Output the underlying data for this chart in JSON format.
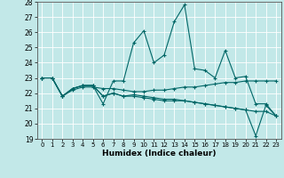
{
  "title": "",
  "xlabel": "Humidex (Indice chaleur)",
  "xlim": [
    -0.5,
    23.5
  ],
  "ylim": [
    19,
    28
  ],
  "yticks": [
    19,
    20,
    21,
    22,
    23,
    24,
    25,
    26,
    27,
    28
  ],
  "xticks": [
    0,
    1,
    2,
    3,
    4,
    5,
    6,
    7,
    8,
    9,
    10,
    11,
    12,
    13,
    14,
    15,
    16,
    17,
    18,
    19,
    20,
    21,
    22,
    23
  ],
  "bg_color": "#c2e8e8",
  "line_color": "#006666",
  "grid_color": "#ffffff",
  "series": [
    [
      23.0,
      23.0,
      21.8,
      22.3,
      22.5,
      22.5,
      21.3,
      22.8,
      22.8,
      25.3,
      26.1,
      24.0,
      24.5,
      26.7,
      27.8,
      23.6,
      23.5,
      23.0,
      24.8,
      23.0,
      23.1,
      21.3,
      21.3,
      20.5
    ],
    [
      23.0,
      23.0,
      21.8,
      22.3,
      22.5,
      22.5,
      21.8,
      22.0,
      21.8,
      21.8,
      21.7,
      21.6,
      21.5,
      21.5,
      21.5,
      21.4,
      21.3,
      21.2,
      21.1,
      21.0,
      20.9,
      20.8,
      20.8,
      20.5
    ],
    [
      23.0,
      23.0,
      21.8,
      22.2,
      22.4,
      22.4,
      22.3,
      22.3,
      22.2,
      22.1,
      22.1,
      22.2,
      22.2,
      22.3,
      22.4,
      22.4,
      22.5,
      22.6,
      22.7,
      22.7,
      22.8,
      22.8,
      22.8,
      22.8
    ],
    [
      23.0,
      23.0,
      21.8,
      22.3,
      22.5,
      22.5,
      21.8,
      22.0,
      21.8,
      21.9,
      21.8,
      21.7,
      21.6,
      21.6,
      21.5,
      21.4,
      21.3,
      21.2,
      21.1,
      21.0,
      20.9,
      19.2,
      21.2,
      20.5
    ]
  ]
}
